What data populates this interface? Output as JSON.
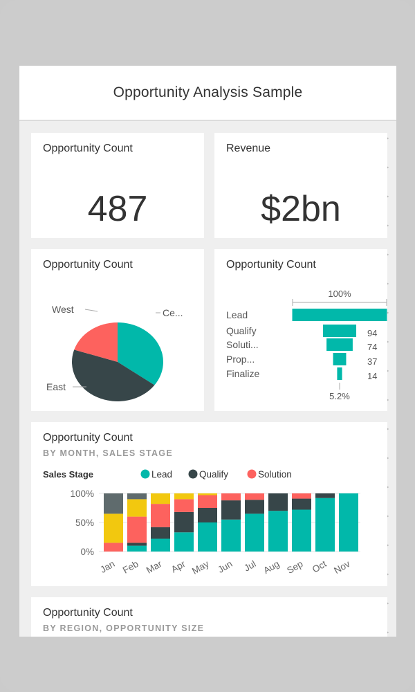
{
  "app": {
    "title": "Opportunity Analysis Sample"
  },
  "tiles": {
    "count_card": {
      "title": "Opportunity Count",
      "value": "487"
    },
    "revenue_card": {
      "title": "Revenue",
      "value": "$2bn"
    },
    "pie": {
      "title": "Opportunity Count"
    },
    "funnel": {
      "title": "Opportunity Count"
    },
    "stacked": {
      "title": "Opportunity Count",
      "subtitle": "BY MONTH, SALES STAGE"
    },
    "region": {
      "title": "Opportunity Count",
      "subtitle": "BY REGION, OPPORTUNITY SIZE"
    }
  },
  "colors": {
    "teal": "#01b8aa",
    "dark": "#374649",
    "red": "#fd625e",
    "yellow": "#f2c80f",
    "grey": "#5f6b6d"
  },
  "chart_data": [
    {
      "type": "pie",
      "slices": [
        {
          "label": "Ce...",
          "value": 35,
          "color": "#01b8aa"
        },
        {
          "label": "East",
          "value": 45,
          "color": "#374649"
        },
        {
          "label": "West",
          "value": 20,
          "color": "#fd625e"
        }
      ]
    },
    {
      "type": "funnel",
      "top_label": "100%",
      "bottom_label": "5.2%",
      "stages": [
        {
          "label": "Lead",
          "value": 268,
          "value_label": ""
        },
        {
          "label": "Qualify",
          "value": 94,
          "value_label": "94"
        },
        {
          "label": "Soluti...",
          "value": 74,
          "value_label": "74"
        },
        {
          "label": "Prop...",
          "value": 37,
          "value_label": "37"
        },
        {
          "label": "Finalize",
          "value": 14,
          "value_label": "14"
        }
      ]
    },
    {
      "type": "bar",
      "stacked": true,
      "legend_title": "Sales Stage",
      "legend": [
        {
          "name": "Lead",
          "color": "#01b8aa"
        },
        {
          "name": "Qualify",
          "color": "#374649"
        },
        {
          "name": "Solution",
          "color": "#fd625e"
        }
      ],
      "y_ticks": [
        "100%",
        "50%",
        "0%"
      ],
      "ylim": [
        0,
        100
      ],
      "categories": [
        "Jan",
        "Feb",
        "Mar",
        "Apr",
        "May",
        "Jun",
        "Jul",
        "Aug",
        "Sep",
        "Oct",
        "Nov"
      ],
      "series": [
        {
          "name": "Lead",
          "color": "#01b8aa",
          "values": [
            0,
            10,
            22,
            33,
            50,
            55,
            65,
            70,
            72,
            92,
            100
          ]
        },
        {
          "name": "Qualify",
          "color": "#374649",
          "values": [
            0,
            5,
            20,
            35,
            25,
            33,
            24,
            30,
            19,
            8,
            0
          ]
        },
        {
          "name": "Solution",
          "color": "#fd625e",
          "values": [
            15,
            45,
            40,
            22,
            22,
            12,
            11,
            0,
            9,
            0,
            0
          ]
        },
        {
          "color": "#f2c80f",
          "values": [
            50,
            30,
            18,
            10,
            3,
            0,
            0,
            0,
            0,
            0,
            0
          ]
        },
        {
          "color": "#5f6b6d",
          "values": [
            35,
            10,
            0,
            0,
            0,
            0,
            0,
            0,
            0,
            0,
            0
          ]
        }
      ]
    }
  ]
}
